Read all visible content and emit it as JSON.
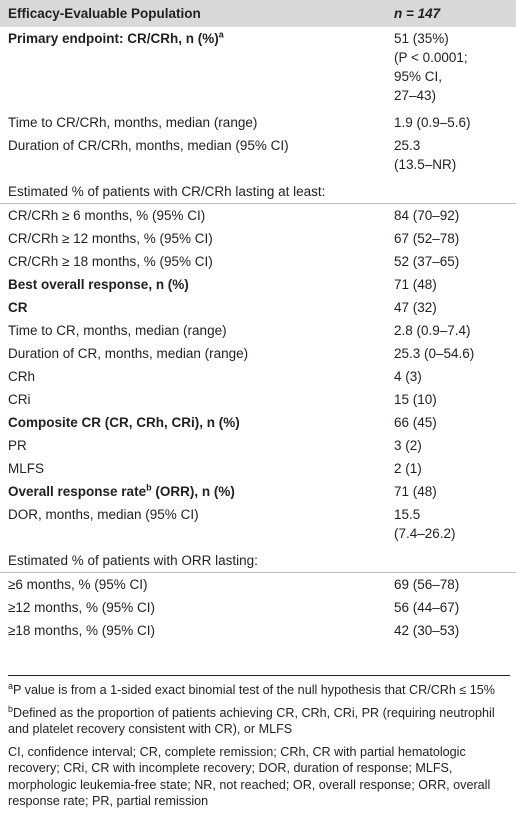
{
  "header": {
    "label": "Efficacy-Evaluable Population",
    "n": "n = 147"
  },
  "rows": [
    {
      "label": "Primary endpoint: CR/CRh, n (%)",
      "sup": "a",
      "value": "51 (35%)\n(P < 0.0001;\n95% CI,\n27–43)",
      "bold": true
    },
    {
      "label": "Time to CR/CRh, months, median (range)",
      "value": "1.9 (0.9–5.6)"
    },
    {
      "label": "Duration of CR/CRh, months, median (95% CI)",
      "value": "25.3\n(13.5–NR)"
    },
    {
      "label": "Estimated % of patients with CR/CRh lasting at least:",
      "value": "",
      "rule": true
    },
    {
      "label": "CR/CRh ≥ 6 months, % (95% CI)",
      "value": "84 (70–92)"
    },
    {
      "label": "CR/CRh ≥ 12 months, % (95% CI)",
      "value": "67 (52–78)"
    },
    {
      "label": "CR/CRh ≥ 18 months, % (95% CI)",
      "value": "52 (37–65)"
    },
    {
      "label": "Best overall response, n (%)",
      "value": "71 (48)",
      "bold": true
    },
    {
      "label": "CR",
      "value": "47 (32)",
      "bold": true
    },
    {
      "label": "Time to CR, months, median (range)",
      "value": "2.8 (0.9–7.4)"
    },
    {
      "label": "Duration of CR, months, median (range)",
      "value": "25.3 (0–54.6)"
    },
    {
      "label": "CRh",
      "value": "4 (3)"
    },
    {
      "label": "CRi",
      "value": "15 (10)"
    },
    {
      "label": "Composite CR (CR, CRh, CRi), n (%)",
      "value": "66 (45)",
      "bold": true
    },
    {
      "label": "PR",
      "value": "3 (2)"
    },
    {
      "label": "MLFS",
      "value": "2 (1)"
    },
    {
      "label": "Overall response rate",
      "sup": "b",
      "label_after": " (ORR), n (%)",
      "value": "71 (48)",
      "bold": true
    },
    {
      "label": "DOR, months, median (95% CI)",
      "value": "15.5\n(7.4–26.2)"
    },
    {
      "label": "Estimated % of patients with ORR lasting:",
      "value": "",
      "rule": true
    },
    {
      "label": "≥6 months, % (95% CI)",
      "value": "69 (56–78)"
    },
    {
      "label": "≥12 months, % (95% CI)",
      "value": "56 (44–67)"
    },
    {
      "label": "≥18 months, % (95% CI)",
      "value": "42 (30–53)"
    }
  ],
  "footnotes": {
    "a": {
      "mark": "a",
      "text": "P value is from a 1-sided exact binomial test of the null hypothesis that CR/CRh ≤ 15%"
    },
    "b": {
      "mark": "b",
      "text": "Defined as the proportion of patients achieving CR, CRh, CRi, PR (requiring neutrophil and platelet recovery consistent with CR), or MLFS"
    },
    "abbrev": "CI, confidence interval; CR, complete remission; CRh, CR with partial hematologic recovery; CRi, CR with incomplete recovery; DOR, duration of response; MLFS, morphologic leukemia-free state; NR, not reached; OR, overall response; ORR, overall response rate; PR, partial remission"
  }
}
